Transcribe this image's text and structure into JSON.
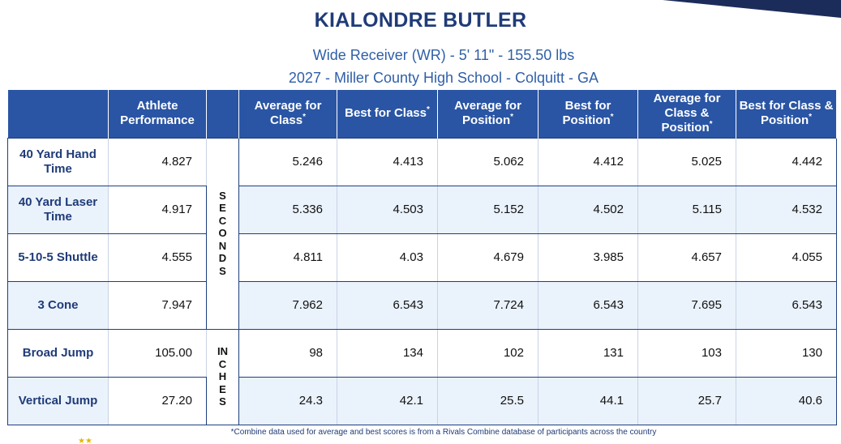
{
  "athlete": {
    "name": "KIALONDRE BUTLER",
    "line1": "Wide Receiver (WR) -  5' 11\" - 155.50 lbs",
    "line2": "2027 - Miller County High School - Colquitt - GA"
  },
  "headers": {
    "athlete": "Athlete Performance",
    "avg_class": "Average for Class",
    "best_class": "Best for Class",
    "avg_position": "Average for Position",
    "best_position": "Best for Position",
    "avg_class_position": "Average for Class & Position",
    "best_class_position": "Best for Class & Position",
    "star": "*"
  },
  "units": {
    "seconds": "SECONDS",
    "inches": "INCHES"
  },
  "rows": [
    {
      "label": "40 Yard Hand Time",
      "athlete": "4.827",
      "avg_class": "5.246",
      "best_class": "4.413",
      "avg_position": "5.062",
      "best_position": "4.412",
      "avg_class_position": "5.025",
      "best_class_position": "4.442"
    },
    {
      "label": "40 Yard Laser Time",
      "athlete": "4.917",
      "avg_class": "5.336",
      "best_class": "4.503",
      "avg_position": "5.152",
      "best_position": "4.502",
      "avg_class_position": "5.115",
      "best_class_position": "4.532"
    },
    {
      "label": "5-10-5 Shuttle",
      "athlete": "4.555",
      "avg_class": "4.811",
      "best_class": "4.03",
      "avg_position": "4.679",
      "best_position": "3.985",
      "avg_class_position": "4.657",
      "best_class_position": "4.055"
    },
    {
      "label": "3 Cone",
      "athlete": "7.947",
      "avg_class": "7.962",
      "best_class": "6.543",
      "avg_position": "7.724",
      "best_position": "6.543",
      "avg_class_position": "7.695",
      "best_class_position": "6.543"
    },
    {
      "label": "Broad Jump",
      "athlete": "105.00",
      "avg_class": "98",
      "best_class": "134",
      "avg_position": "102",
      "best_position": "131",
      "avg_class_position": "103",
      "best_class_position": "130"
    },
    {
      "label": "Vertical Jump",
      "athlete": "27.20",
      "avg_class": "24.3",
      "best_class": "42.1",
      "avg_position": "25.5",
      "best_position": "44.1",
      "avg_class_position": "25.7",
      "best_class_position": "40.6"
    }
  ],
  "footnote": "*Combine data used for average and best scores is from a Rivals Combine database of participants across the country",
  "colors": {
    "header_bg": "#2a55a4",
    "title_text": "#1f3b78",
    "subtitle_text": "#2f5fa8",
    "alt_row_bg": "#eaf2fb",
    "rule": "#1e3f7e"
  }
}
